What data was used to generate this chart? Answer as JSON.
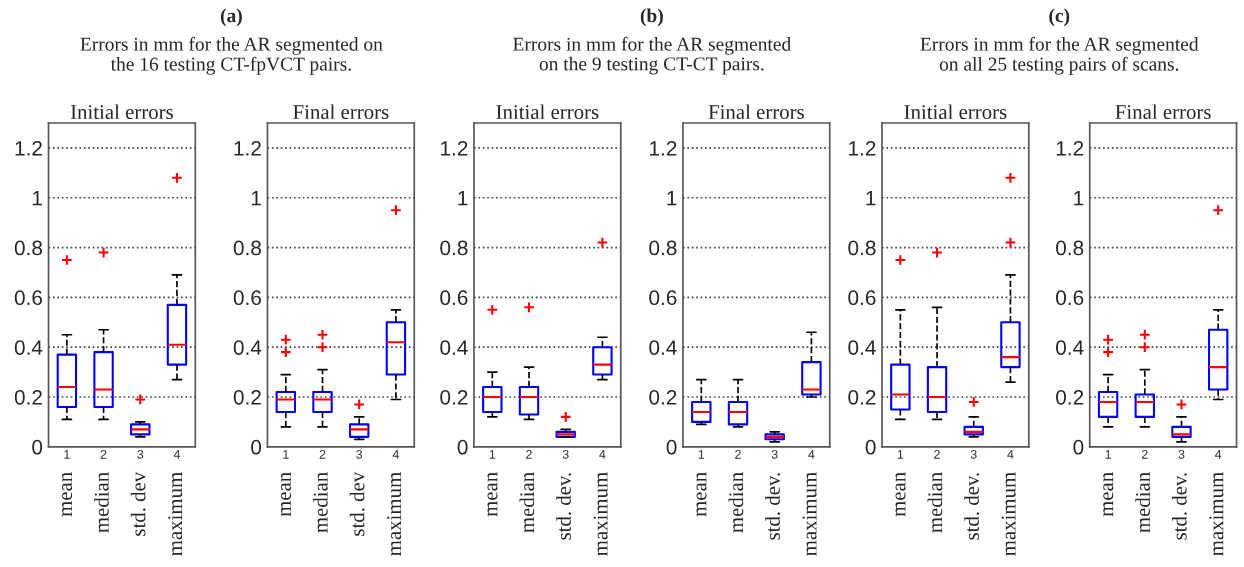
{
  "chart_data": [
    {
      "type": "box",
      "title": "Initial errors",
      "subtitle": "(a)\nErrors in mm for the AR segmented on\nthe 16 testing CT-fpVCT pairs.",
      "annotations": [
        "mean",
        "median",
        "std. dev",
        "maximum"
      ],
      "categories": [
        "1",
        "2",
        "3",
        "4"
      ],
      "ylim": [
        0,
        1.3
      ],
      "yticks": [
        0,
        0.2,
        0.4,
        0.6,
        0.8,
        1,
        1.2
      ],
      "grid": "y",
      "color": "#0000ff",
      "boxes": [
        {
          "low": 0.11,
          "q1": 0.16,
          "median": 0.24,
          "q3": 0.37,
          "high": 0.45,
          "outliers": [
            0.75
          ]
        },
        {
          "low": 0.11,
          "q1": 0.16,
          "median": 0.23,
          "q3": 0.38,
          "high": 0.47,
          "outliers": [
            0.78
          ]
        },
        {
          "low": 0.04,
          "q1": 0.05,
          "median": 0.07,
          "q3": 0.09,
          "high": 0.1,
          "outliers": [
            0.19
          ]
        },
        {
          "low": 0.27,
          "q1": 0.33,
          "median": 0.41,
          "q3": 0.57,
          "high": 0.69,
          "outliers": [
            1.08
          ]
        }
      ]
    },
    {
      "type": "box",
      "title": "Final errors",
      "annotations": [
        "mean",
        "median",
        "std. dev",
        "maximum"
      ],
      "categories": [
        "1",
        "2",
        "3",
        "4"
      ],
      "ylim": [
        0,
        1.3
      ],
      "yticks": [
        0,
        0.2,
        0.4,
        0.6,
        0.8,
        1,
        1.2
      ],
      "grid": "y",
      "color": "#0000ff",
      "boxes": [
        {
          "low": 0.08,
          "q1": 0.14,
          "median": 0.19,
          "q3": 0.22,
          "high": 0.29,
          "outliers": [
            0.38,
            0.43
          ]
        },
        {
          "low": 0.08,
          "q1": 0.14,
          "median": 0.19,
          "q3": 0.22,
          "high": 0.31,
          "outliers": [
            0.4,
            0.45
          ]
        },
        {
          "low": 0.03,
          "q1": 0.04,
          "median": 0.07,
          "q3": 0.09,
          "high": 0.12,
          "outliers": [
            0.17
          ]
        },
        {
          "low": 0.19,
          "q1": 0.29,
          "median": 0.42,
          "q3": 0.5,
          "high": 0.55,
          "outliers": [
            0.95
          ]
        }
      ]
    },
    {
      "type": "box",
      "title": "Initial errors",
      "subtitle": "(b)\nErrors in mm for the AR segmented\non the 9 testing CT-CT pairs.",
      "annotations": [
        "mean",
        "median",
        "std. dev.",
        "maximum"
      ],
      "categories": [
        "1",
        "2",
        "3",
        "4"
      ],
      "ylim": [
        0,
        1.3
      ],
      "yticks": [
        0,
        0.2,
        0.4,
        0.6,
        0.8,
        1,
        1.2
      ],
      "grid": "y",
      "color": "#0000ff",
      "boxes": [
        {
          "low": 0.12,
          "q1": 0.14,
          "median": 0.2,
          "q3": 0.24,
          "high": 0.3,
          "outliers": [
            0.55
          ]
        },
        {
          "low": 0.11,
          "q1": 0.13,
          "median": 0.2,
          "q3": 0.24,
          "high": 0.32,
          "outliers": [
            0.56
          ]
        },
        {
          "low": 0.04,
          "q1": 0.04,
          "median": 0.05,
          "q3": 0.06,
          "high": 0.07,
          "outliers": [
            0.12
          ]
        },
        {
          "low": 0.27,
          "q1": 0.29,
          "median": 0.33,
          "q3": 0.4,
          "high": 0.44,
          "outliers": [
            0.82
          ]
        }
      ]
    },
    {
      "type": "box",
      "title": "Final errors",
      "annotations": [
        "mean",
        "median",
        "std. dev.",
        "maximum"
      ],
      "categories": [
        "1",
        "2",
        "3",
        "4"
      ],
      "ylim": [
        0,
        1.3
      ],
      "yticks": [
        0,
        0.2,
        0.4,
        0.6,
        0.8,
        1,
        1.2
      ],
      "grid": "y",
      "color": "#0000ff",
      "boxes": [
        {
          "low": 0.09,
          "q1": 0.1,
          "median": 0.14,
          "q3": 0.18,
          "high": 0.27
        },
        {
          "low": 0.08,
          "q1": 0.09,
          "median": 0.14,
          "q3": 0.18,
          "high": 0.27
        },
        {
          "low": 0.02,
          "q1": 0.03,
          "median": 0.04,
          "q3": 0.05,
          "high": 0.06
        },
        {
          "low": 0.2,
          "q1": 0.21,
          "median": 0.23,
          "q3": 0.34,
          "high": 0.46
        }
      ]
    },
    {
      "type": "box",
      "title": "Initial errors",
      "subtitle": "(c)\nErrors in mm for the AR segmented\non all 25 testing pairs of scans.",
      "annotations": [
        "mean",
        "median",
        "std. dev.",
        "maximum"
      ],
      "categories": [
        "1",
        "2",
        "3",
        "4"
      ],
      "ylim": [
        0,
        1.3
      ],
      "yticks": [
        0,
        0.2,
        0.4,
        0.6,
        0.8,
        1,
        1.2
      ],
      "grid": "y",
      "color": "#0000ff",
      "boxes": [
        {
          "low": 0.11,
          "q1": 0.15,
          "median": 0.21,
          "q3": 0.33,
          "high": 0.55,
          "outliers": [
            0.75
          ]
        },
        {
          "low": 0.11,
          "q1": 0.14,
          "median": 0.2,
          "q3": 0.32,
          "high": 0.56,
          "outliers": [
            0.78
          ]
        },
        {
          "low": 0.04,
          "q1": 0.05,
          "median": 0.06,
          "q3": 0.08,
          "high": 0.12,
          "outliers": [
            0.18
          ]
        },
        {
          "low": 0.26,
          "q1": 0.32,
          "median": 0.36,
          "q3": 0.5,
          "high": 0.69,
          "outliers": [
            0.82,
            1.08
          ]
        }
      ]
    },
    {
      "type": "box",
      "title": "Final errors",
      "annotations": [
        "mean",
        "median",
        "std. dev.",
        "maximum"
      ],
      "categories": [
        "1",
        "2",
        "3",
        "4"
      ],
      "ylim": [
        0,
        1.3
      ],
      "yticks": [
        0,
        0.2,
        0.4,
        0.6,
        0.8,
        1,
        1.2
      ],
      "grid": "y",
      "color": "#0000ff",
      "boxes": [
        {
          "low": 0.08,
          "q1": 0.12,
          "median": 0.18,
          "q3": 0.22,
          "high": 0.29,
          "outliers": [
            0.38,
            0.43
          ]
        },
        {
          "low": 0.08,
          "q1": 0.12,
          "median": 0.18,
          "q3": 0.21,
          "high": 0.31,
          "outliers": [
            0.4,
            0.45
          ]
        },
        {
          "low": 0.02,
          "q1": 0.04,
          "median": 0.05,
          "q3": 0.08,
          "high": 0.12,
          "outliers": [
            0.17
          ]
        },
        {
          "low": 0.19,
          "q1": 0.23,
          "median": 0.32,
          "q3": 0.47,
          "high": 0.55,
          "outliers": [
            0.95
          ]
        }
      ]
    }
  ]
}
